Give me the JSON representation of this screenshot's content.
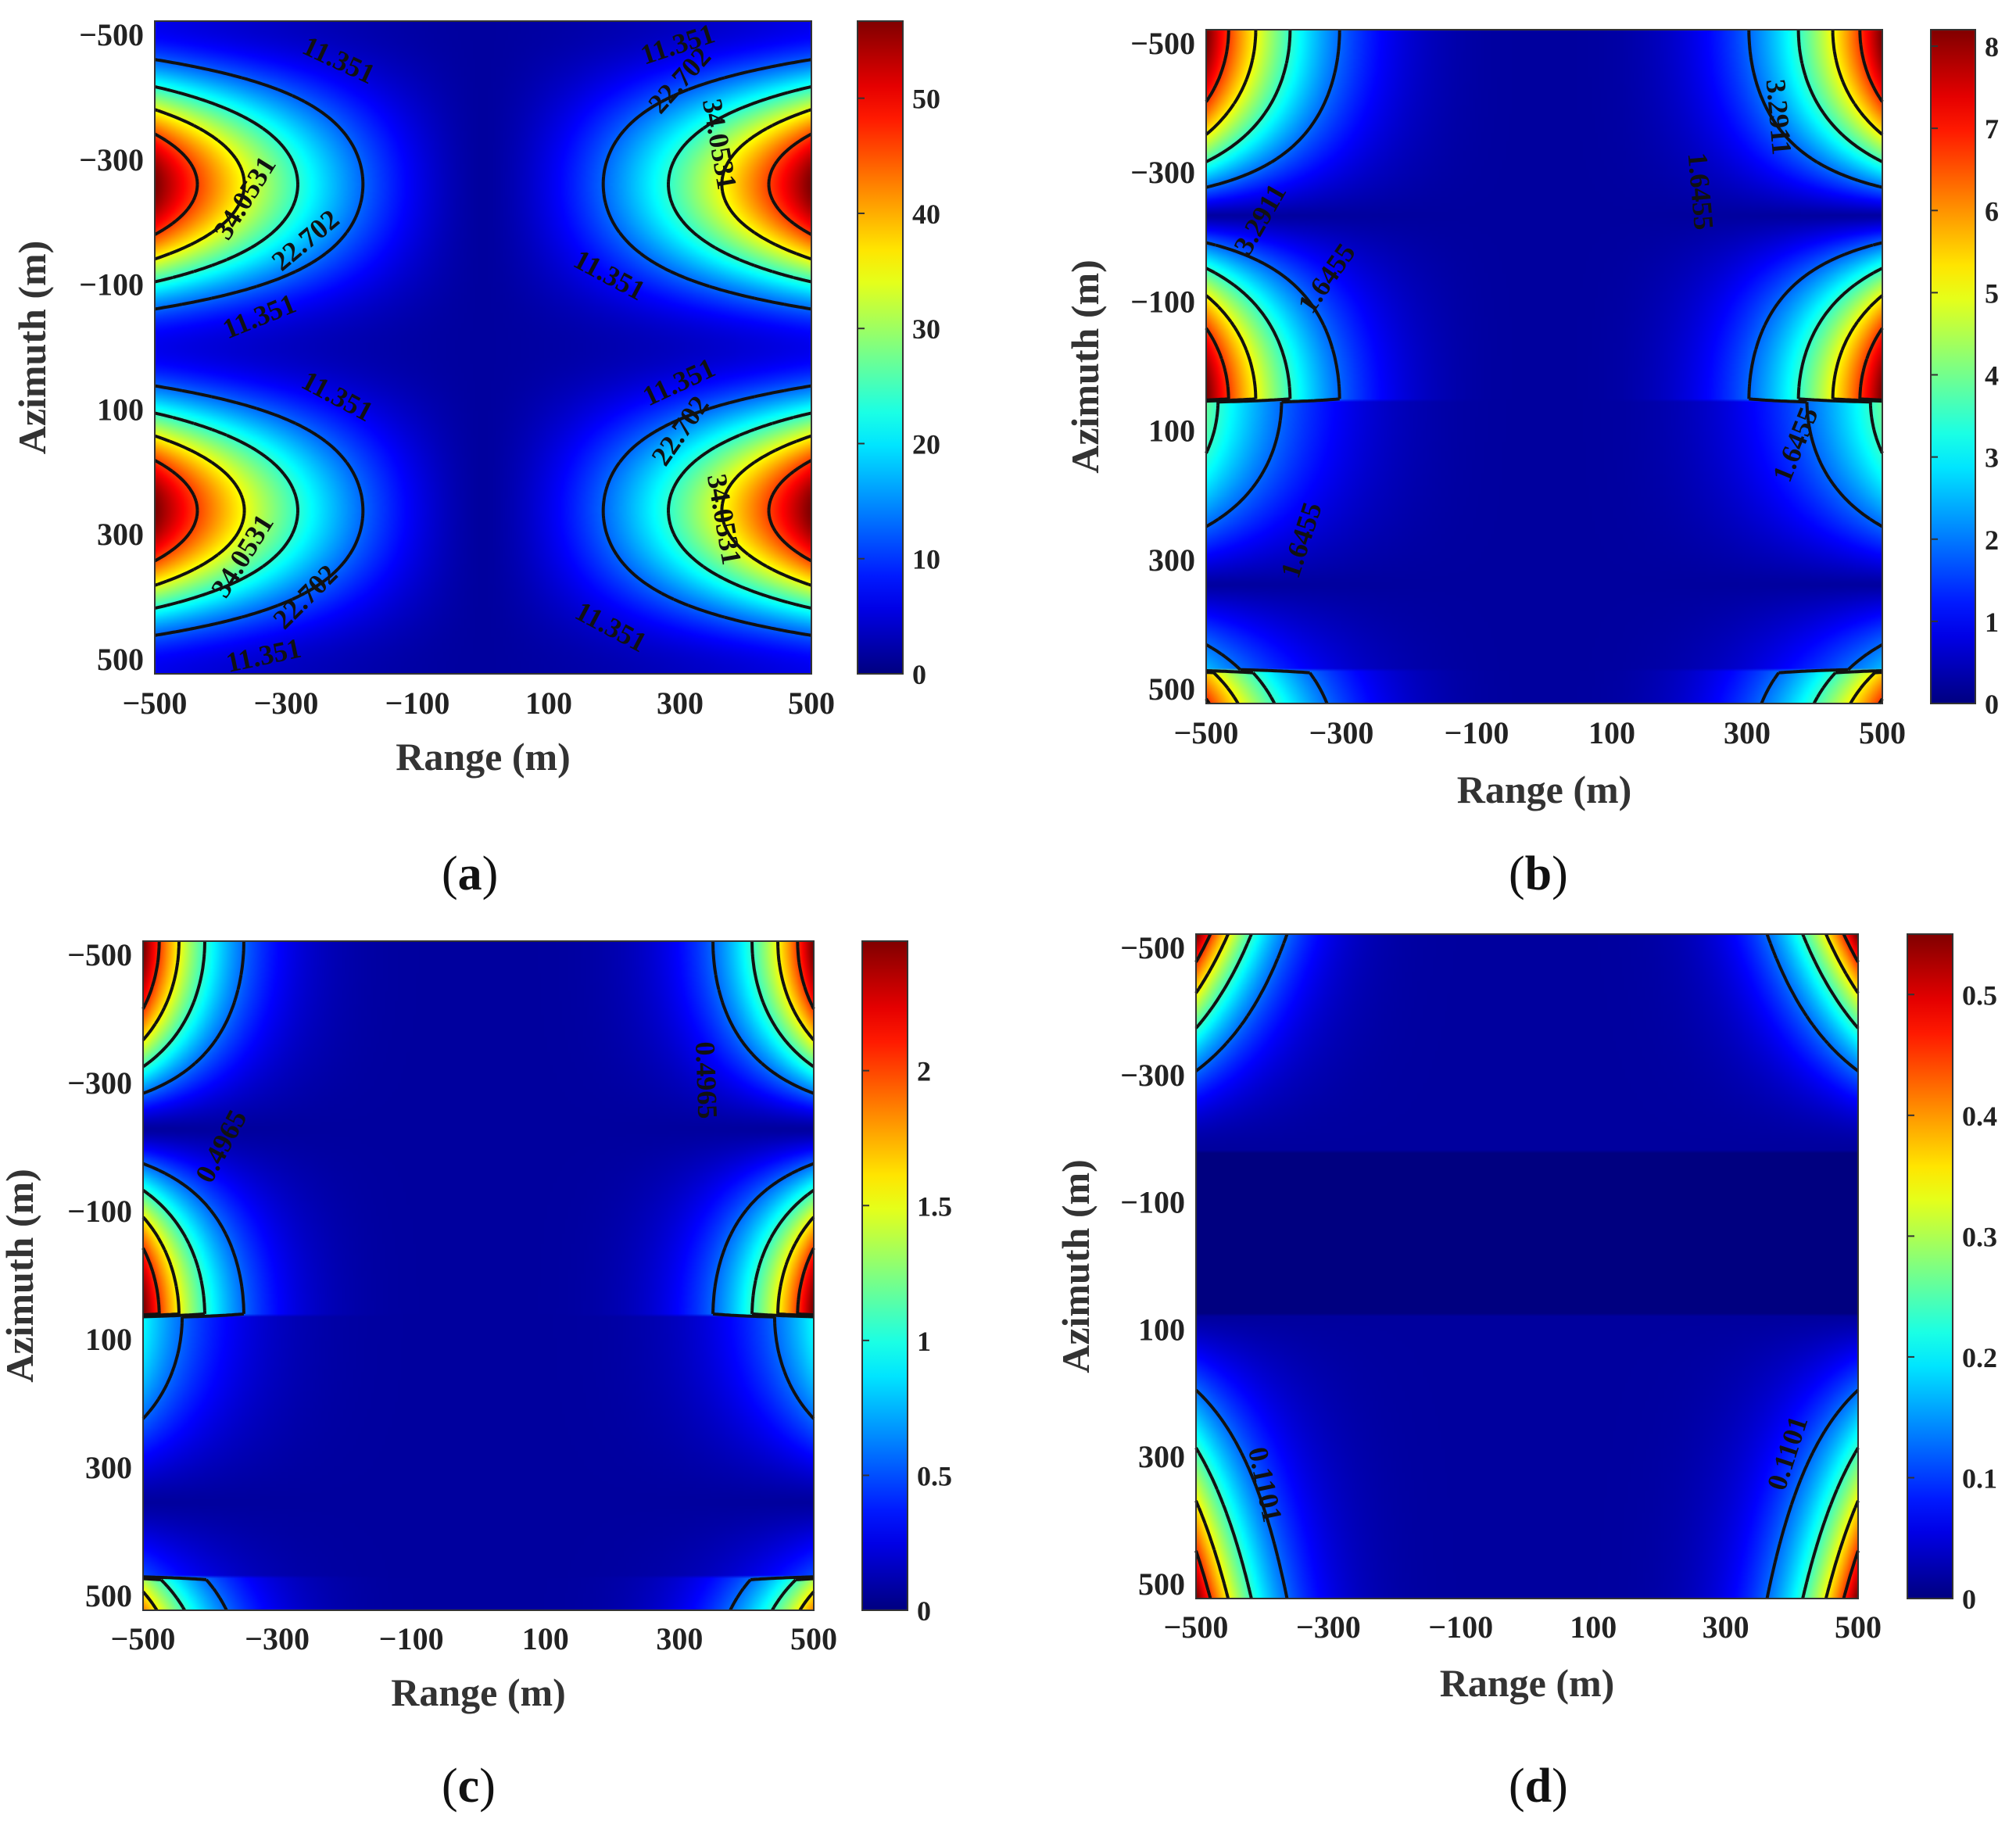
{
  "chart_data": [
    {
      "id": "a",
      "type": "heatmap",
      "caption_letter": "a",
      "title": "",
      "xlabel": "Range (m)",
      "ylabel": "Azimuth (m)",
      "xlim": [
        -500,
        500
      ],
      "ylim": [
        -500,
        500
      ],
      "x_ticks": [
        "−500",
        "−300",
        "−100",
        "100",
        "300",
        "500"
      ],
      "y_ticks": [
        "−500",
        "−300",
        "−100",
        "100",
        "300",
        "500"
      ],
      "max_value": 56.7,
      "colorbar_max": 56.7,
      "colorbar_ticks": [
        "0",
        "10",
        "20",
        "30",
        "40",
        "50"
      ],
      "colorbar_tick_values": [
        0,
        10,
        20,
        30,
        40,
        50
      ],
      "colormap": "jet",
      "contour_levels": [
        11.351,
        22.702,
        34.0531,
        45.4
      ],
      "contour_labels": [
        "11.351",
        "11.351",
        "11.351",
        "11.351",
        "11.351",
        "11.351",
        "11.351",
        "11.351",
        "22.702",
        "22.702",
        "22.702",
        "22.702",
        "34.0531",
        "34.0531",
        "34.0531",
        "34.0531"
      ]
    },
    {
      "id": "b",
      "type": "heatmap",
      "caption_letter": "b",
      "title": "",
      "xlabel": "Range (m)",
      "ylabel": "Azimuth (m)",
      "xlim": [
        -500,
        500
      ],
      "ylim": [
        -500,
        500
      ],
      "x_ticks": [
        "−500",
        "−300",
        "−100",
        "100",
        "300",
        "500"
      ],
      "y_ticks": [
        "−500",
        "−300",
        "−100",
        "100",
        "300",
        "500"
      ],
      "max_value": 8.2,
      "colorbar_max": 8.2,
      "colorbar_ticks": [
        "0",
        "1",
        "2",
        "3",
        "4",
        "5",
        "6",
        "7",
        "8"
      ],
      "colorbar_tick_values": [
        0,
        1,
        2,
        3,
        4,
        5,
        6,
        7,
        8
      ],
      "colormap": "jet",
      "contour_levels": [
        1.6455,
        3.2911,
        4.9366,
        6.5822
      ],
      "contour_labels": [
        "1.6455",
        "1.6455",
        "1.6455",
        "1.6455",
        "3.2911",
        "3.2911"
      ]
    },
    {
      "id": "c",
      "type": "heatmap",
      "caption_letter": "c",
      "title": "",
      "xlabel": "Range (m)",
      "ylabel": "Azimuth (m)",
      "xlim": [
        -500,
        500
      ],
      "ylim": [
        -500,
        500
      ],
      "x_ticks": [
        "−500",
        "−300",
        "−100",
        "100",
        "300",
        "500"
      ],
      "y_ticks": [
        "−500",
        "−300",
        "−100",
        "100",
        "300",
        "500"
      ],
      "max_value": 2.48,
      "colorbar_max": 2.48,
      "colorbar_ticks": [
        "0",
        "0.5",
        "1",
        "1.5",
        "2"
      ],
      "colorbar_tick_values": [
        0,
        0.5,
        1,
        1.5,
        2
      ],
      "colormap": "jet",
      "contour_levels": [
        0.4965,
        0.993,
        1.4895,
        1.986
      ],
      "contour_labels": [
        "0.4965",
        "0.4965"
      ]
    },
    {
      "id": "d",
      "type": "heatmap",
      "caption_letter": "d",
      "title": "",
      "xlabel": "Range (m)",
      "ylabel": "Azimuth (m)",
      "xlim": [
        -500,
        500
      ],
      "ylim": [
        -500,
        500
      ],
      "x_ticks": [
        "−500",
        "−300",
        "−100",
        "100",
        "300",
        "500"
      ],
      "y_ticks": [
        "−500",
        "−300",
        "−100",
        "100",
        "300",
        "500"
      ],
      "max_value": 0.55,
      "colorbar_max": 0.55,
      "colorbar_ticks": [
        "0",
        "0.1",
        "0.2",
        "0.3",
        "0.4",
        "0.5"
      ],
      "colorbar_tick_values": [
        0,
        0.1,
        0.2,
        0.3,
        0.4,
        0.5
      ],
      "colormap": "jet",
      "contour_levels": [
        0.1101,
        0.2202,
        0.3303,
        0.4404
      ],
      "contour_labels": [
        "0.1101",
        "0.1101"
      ]
    }
  ]
}
